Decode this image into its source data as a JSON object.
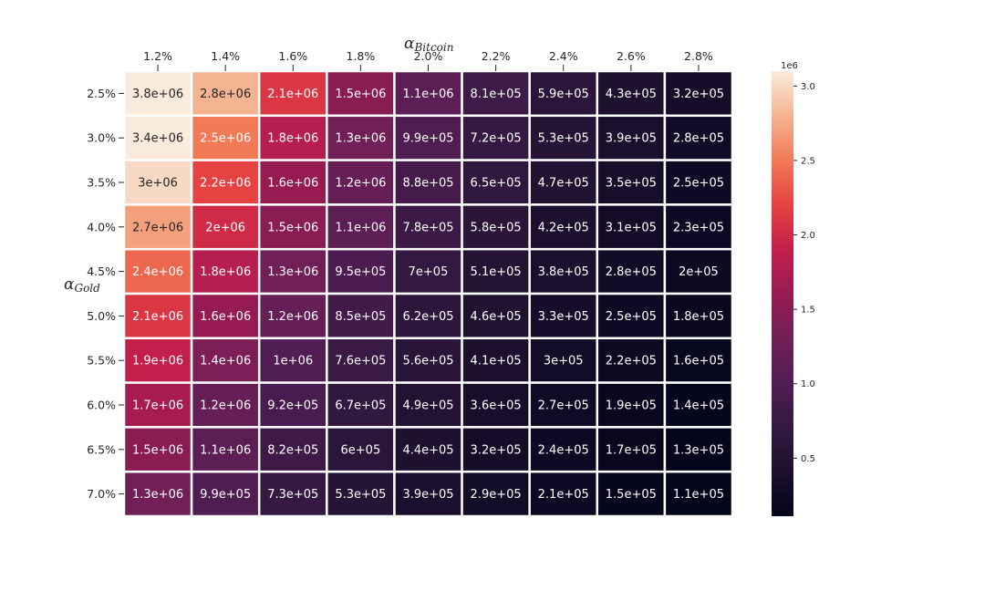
{
  "chart_data": {
    "type": "heatmap",
    "xlabel": {
      "base": "α",
      "sub": "Bitcoin"
    },
    "ylabel": {
      "base": "α",
      "sub": "Gold"
    },
    "x_categories": [
      "1.2%",
      "1.4%",
      "1.6%",
      "1.8%",
      "2.0%",
      "2.2%",
      "2.4%",
      "2.6%",
      "2.8%"
    ],
    "y_categories": [
      "2.5%",
      "3.0%",
      "3.5%",
      "4.0%",
      "4.5%",
      "5.0%",
      "5.5%",
      "6.0%",
      "6.5%",
      "7.0%"
    ],
    "values": [
      [
        3800000,
        2800000,
        2100000,
        1500000,
        1100000,
        810000,
        590000,
        430000,
        320000
      ],
      [
        3400000,
        2500000,
        1800000,
        1300000,
        990000,
        720000,
        530000,
        390000,
        280000
      ],
      [
        3000000,
        2200000,
        1600000,
        1200000,
        880000,
        650000,
        470000,
        350000,
        250000
      ],
      [
        2700000,
        2000000,
        1500000,
        1100000,
        780000,
        580000,
        420000,
        310000,
        230000
      ],
      [
        2400000,
        1800000,
        1300000,
        950000,
        700000,
        510000,
        380000,
        280000,
        200000
      ],
      [
        2100000,
        1600000,
        1200000,
        850000,
        620000,
        460000,
        330000,
        250000,
        180000
      ],
      [
        1900000,
        1400000,
        1000000,
        760000,
        560000,
        410000,
        300000,
        220000,
        160000
      ],
      [
        1700000,
        1200000,
        920000,
        670000,
        490000,
        360000,
        270000,
        190000,
        140000
      ],
      [
        1500000,
        1100000,
        820000,
        600000,
        440000,
        320000,
        240000,
        170000,
        130000
      ],
      [
        1300000,
        990000,
        730000,
        530000,
        390000,
        290000,
        210000,
        150000,
        110000
      ]
    ],
    "labels": [
      [
        "3.8e+06",
        "2.8e+06",
        "2.1e+06",
        "1.5e+06",
        "1.1e+06",
        "8.1e+05",
        "5.9e+05",
        "4.3e+05",
        "3.2e+05"
      ],
      [
        "3.4e+06",
        "2.5e+06",
        "1.8e+06",
        "1.3e+06",
        "9.9e+05",
        "7.2e+05",
        "5.3e+05",
        "3.9e+05",
        "2.8e+05"
      ],
      [
        "3e+06",
        "2.2e+06",
        "1.6e+06",
        "1.2e+06",
        "8.8e+05",
        "6.5e+05",
        "4.7e+05",
        "3.5e+05",
        "2.5e+05"
      ],
      [
        "2.7e+06",
        "2e+06",
        "1.5e+06",
        "1.1e+06",
        "7.8e+05",
        "5.8e+05",
        "4.2e+05",
        "3.1e+05",
        "2.3e+05"
      ],
      [
        "2.4e+06",
        "1.8e+06",
        "1.3e+06",
        "9.5e+05",
        "7e+05",
        "5.1e+05",
        "3.8e+05",
        "2.8e+05",
        "2e+05"
      ],
      [
        "2.1e+06",
        "1.6e+06",
        "1.2e+06",
        "8.5e+05",
        "6.2e+05",
        "4.6e+05",
        "3.3e+05",
        "2.5e+05",
        "1.8e+05"
      ],
      [
        "1.9e+06",
        "1.4e+06",
        "1e+06",
        "7.6e+05",
        "5.6e+05",
        "4.1e+05",
        "3e+05",
        "2.2e+05",
        "1.6e+05"
      ],
      [
        "1.7e+06",
        "1.2e+06",
        "9.2e+05",
        "6.7e+05",
        "4.9e+05",
        "3.6e+05",
        "2.7e+05",
        "1.9e+05",
        "1.4e+05"
      ],
      [
        "1.5e+06",
        "1.1e+06",
        "8.2e+05",
        "6e+05",
        "4.4e+05",
        "3.2e+05",
        "2.4e+05",
        "1.7e+05",
        "1.3e+05"
      ],
      [
        "1.3e+06",
        "9.9e+05",
        "7.3e+05",
        "5.3e+05",
        "3.9e+05",
        "2.9e+05",
        "2.1e+05",
        "1.5e+05",
        "1.1e+05"
      ]
    ],
    "colormap": "rocket",
    "color_range": [
      110000,
      3100000
    ],
    "colorbar": {
      "multiplier": "1e6",
      "ticks": [
        0.5,
        1.0,
        1.5,
        2.0,
        2.5,
        3.0
      ],
      "tick_labels": [
        "0.5",
        "1.0",
        "1.5",
        "2.0",
        "2.5",
        "3.0"
      ]
    },
    "x_axis_position": "top",
    "grid": false
  }
}
